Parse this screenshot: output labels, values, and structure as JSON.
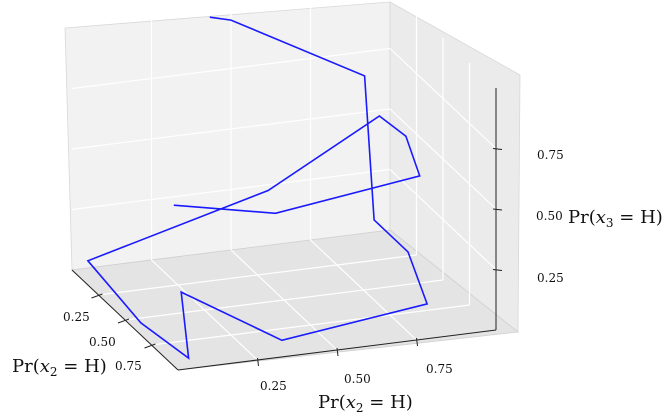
{
  "chart_data": {
    "type": "line",
    "projection": "3d",
    "grid": true,
    "panes": "light-gray",
    "line_color": "#1a1aff",
    "axes": {
      "x": {
        "label_pre": "Pr(",
        "label_var": "x",
        "label_sub": "2",
        "label_post": " = H)",
        "ticks": [
          "0.25",
          "0.50",
          "0.75"
        ]
      },
      "y": {
        "label_pre": "Pr(",
        "label_var": "x",
        "label_sub": "2",
        "label_post": " = H)",
        "ticks": [
          "0.25",
          "0.50",
          "0.75"
        ]
      },
      "z": {
        "label_pre": "Pr(",
        "label_var": "x",
        "label_sub": "3",
        "label_post": " = H)",
        "ticks": [
          "0.25",
          "0.50",
          "0.75"
        ]
      }
    },
    "series": [
      {
        "points": [
          [
            0.1,
            0.4,
            1.02
          ],
          [
            0.0,
            0.5,
            0.95
          ],
          [
            0.0,
            0.92,
            0.65
          ],
          [
            0.0,
            0.95,
            0.05
          ],
          [
            0.32,
            0.95,
            0.05
          ],
          [
            0.8,
            0.85,
            0.05
          ],
          [
            0.96,
            0.34,
            0.05
          ],
          [
            0.85,
            0.06,
            0.25
          ],
          [
            0.95,
            0.05,
            0.02
          ],
          [
            0.65,
            0.0,
            0.05
          ],
          [
            0.15,
            0.0,
            0.1
          ],
          [
            0.05,
            0.6,
            0.25
          ],
          [
            0.05,
            0.95,
            0.5
          ],
          [
            0.3,
            0.95,
            0.52
          ],
          [
            0.73,
            0.85,
            0.55
          ],
          [
            0.9,
            0.34,
            0.55
          ],
          [
            0.78,
            0.06,
            0.58
          ]
        ]
      }
    ]
  }
}
